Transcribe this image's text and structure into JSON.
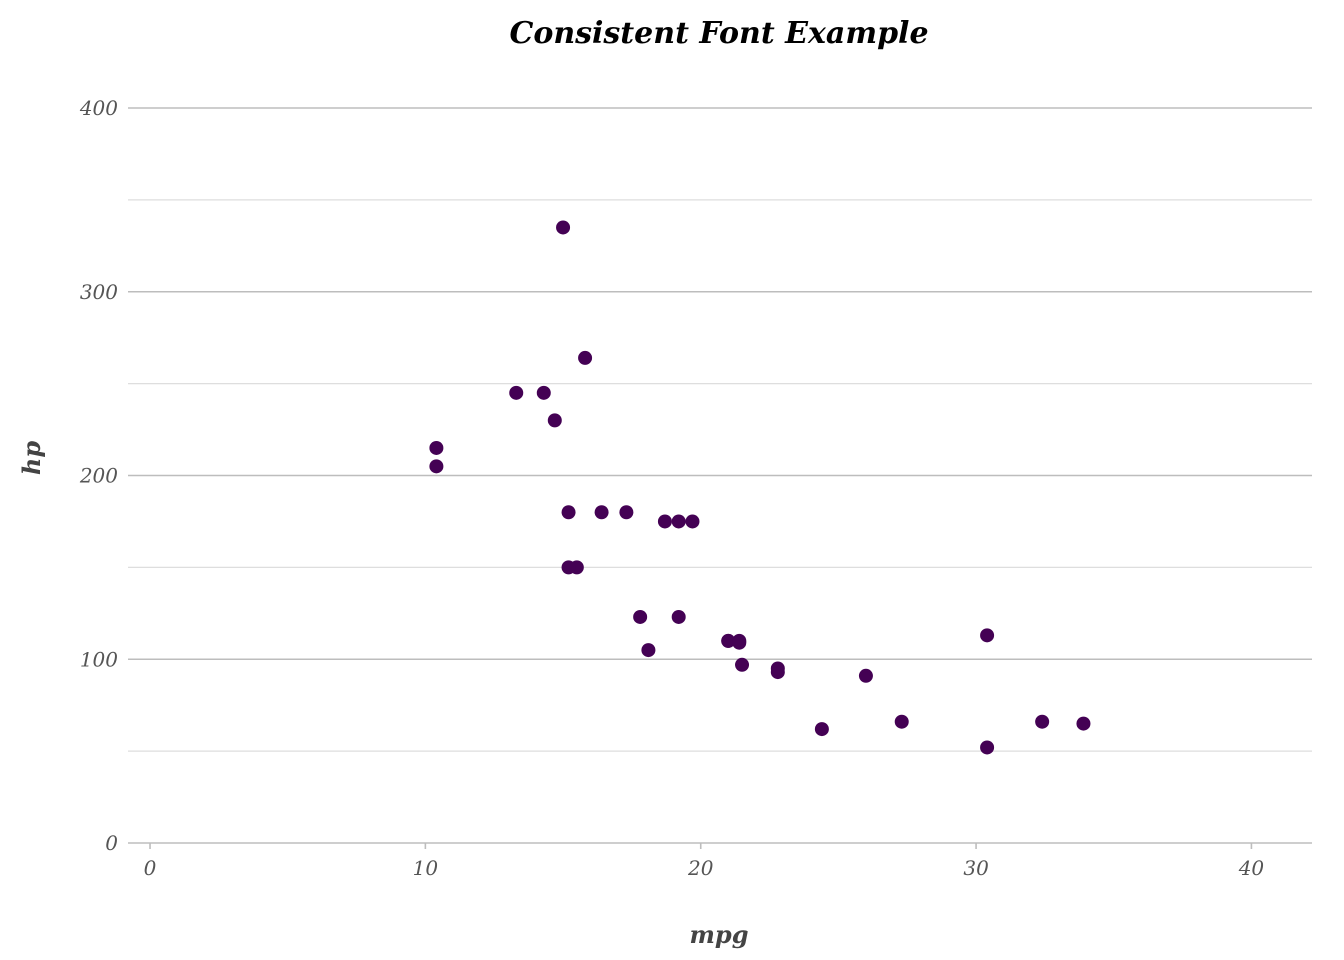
{
  "chart_data": {
    "type": "scatter",
    "title": "Consistent Font Example",
    "xlabel": "mpg",
    "ylabel": "hp",
    "xlim": [
      -0.8,
      42.2
    ],
    "ylim": [
      0,
      400
    ],
    "x_ticks": [
      0,
      10,
      20,
      30,
      40
    ],
    "y_ticks": [
      0,
      100,
      200,
      300,
      400
    ],
    "y_minor_gridlines": [
      50,
      150,
      250,
      350
    ],
    "grid": "horizontal",
    "point_color": "#440154",
    "series": [
      {
        "points": [
          {
            "x": 21.0,
            "y": 110
          },
          {
            "x": 21.0,
            "y": 110
          },
          {
            "x": 22.8,
            "y": 93
          },
          {
            "x": 21.4,
            "y": 110
          },
          {
            "x": 18.7,
            "y": 175
          },
          {
            "x": 18.1,
            "y": 105
          },
          {
            "x": 14.3,
            "y": 245
          },
          {
            "x": 24.4,
            "y": 62
          },
          {
            "x": 22.8,
            "y": 95
          },
          {
            "x": 19.2,
            "y": 123
          },
          {
            "x": 17.8,
            "y": 123
          },
          {
            "x": 16.4,
            "y": 180
          },
          {
            "x": 17.3,
            "y": 180
          },
          {
            "x": 15.2,
            "y": 180
          },
          {
            "x": 10.4,
            "y": 205
          },
          {
            "x": 10.4,
            "y": 215
          },
          {
            "x": 14.7,
            "y": 230
          },
          {
            "x": 32.4,
            "y": 66
          },
          {
            "x": 30.4,
            "y": 52
          },
          {
            "x": 33.9,
            "y": 65
          },
          {
            "x": 21.5,
            "y": 97
          },
          {
            "x": 15.5,
            "y": 150
          },
          {
            "x": 15.2,
            "y": 150
          },
          {
            "x": 13.3,
            "y": 245
          },
          {
            "x": 19.2,
            "y": 175
          },
          {
            "x": 27.3,
            "y": 66
          },
          {
            "x": 26.0,
            "y": 91
          },
          {
            "x": 30.4,
            "y": 113
          },
          {
            "x": 15.8,
            "y": 264
          },
          {
            "x": 19.7,
            "y": 175
          },
          {
            "x": 15.0,
            "y": 335
          },
          {
            "x": 21.4,
            "y": 109
          }
        ]
      }
    ]
  }
}
